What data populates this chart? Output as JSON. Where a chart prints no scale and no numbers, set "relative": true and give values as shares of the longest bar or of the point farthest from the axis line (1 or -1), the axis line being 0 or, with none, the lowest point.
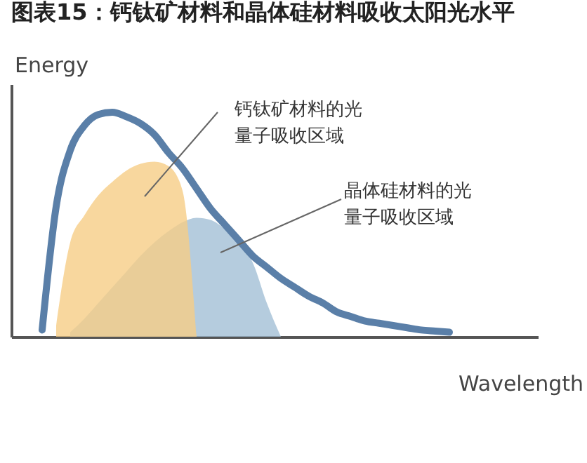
{
  "chart_data": {
    "type": "line",
    "title": "图表15：钙钛矿材料和晶体硅材料吸收太阳光水平",
    "xlabel": "Wavelength",
    "ylabel": "Energy",
    "relative": true,
    "tick_labels": false,
    "categories": [
      null,
      null,
      null,
      null,
      null,
      null,
      null,
      null,
      null,
      null,
      null,
      null,
      null,
      null,
      null,
      null,
      null,
      null,
      null,
      null,
      null,
      null,
      null,
      null,
      null,
      null,
      null,
      null,
      null,
      null
    ],
    "series": [
      {
        "type": "area",
        "color": "#a3bfd6",
        "values": [
          null,
          null,
          0.02,
          0.08,
          0.15,
          0.22,
          0.29,
          0.36,
          0.42,
          0.47,
          0.51,
          0.53,
          0.52,
          0.48,
          0.42,
          0.33,
          0.15,
          0,
          null,
          null,
          null,
          null,
          null,
          null,
          null,
          null,
          null,
          null,
          null,
          null
        ]
      },
      {
        "type": "area",
        "color": "#f6cd86",
        "values": [
          null,
          0.05,
          0.42,
          0.54,
          0.63,
          0.69,
          0.74,
          0.77,
          0.78,
          0.76,
          0.65,
          0,
          null,
          null,
          null,
          null,
          null,
          null,
          null,
          null,
          null,
          null,
          null,
          null,
          null,
          null,
          null,
          null,
          null,
          null
        ]
      },
      {
        "color": "#5a7fa8",
        "values": [
          0.03,
          0.58,
          0.83,
          0.94,
          0.99,
          1.0,
          0.98,
          0.95,
          0.9,
          0.82,
          0.75,
          0.66,
          0.57,
          0.5,
          0.43,
          0.36,
          0.31,
          0.26,
          0.22,
          0.18,
          0.15,
          0.11,
          0.09,
          0.07,
          0.06,
          0.05,
          0.04,
          0.03,
          0.025,
          0.02
        ]
      }
    ],
    "annotations": [
      "钙钛矿材料的光量子吸收区域",
      "晶体硅材料的光量子吸收区域"
    ]
  }
}
